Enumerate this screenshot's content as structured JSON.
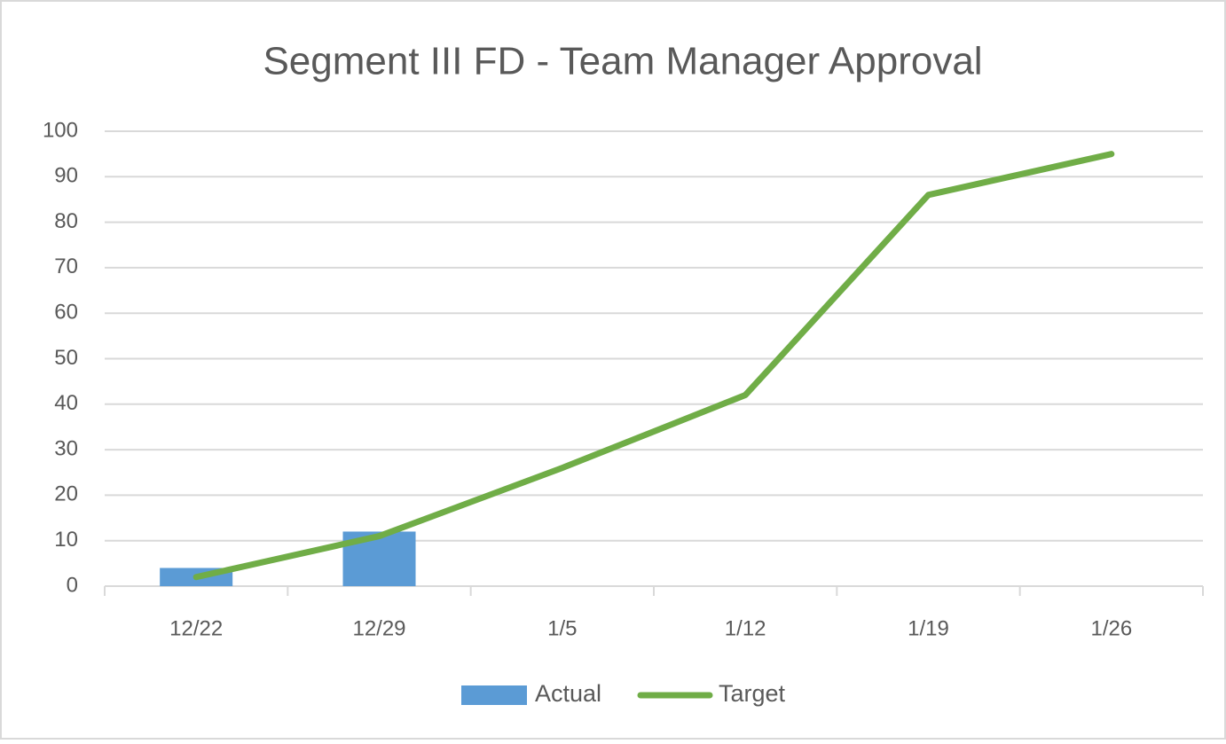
{
  "chart_data": {
    "type": "combo",
    "title": "Segment III FD - Team Manager Approval",
    "categories": [
      "12/22",
      "12/29",
      "1/5",
      "1/12",
      "1/19",
      "1/26"
    ],
    "series": [
      {
        "name": "Actual",
        "type": "bar",
        "color": "#5b9bd5",
        "values": [
          4,
          12,
          null,
          null,
          null,
          null
        ]
      },
      {
        "name": "Target",
        "type": "line",
        "color": "#70ad47",
        "values": [
          2,
          11,
          26,
          42,
          86,
          95
        ]
      }
    ],
    "ylim": [
      0,
      100
    ],
    "yticks": [
      0,
      10,
      20,
      30,
      40,
      50,
      60,
      70,
      80,
      90,
      100
    ],
    "grid": true,
    "legend": "bottom"
  }
}
